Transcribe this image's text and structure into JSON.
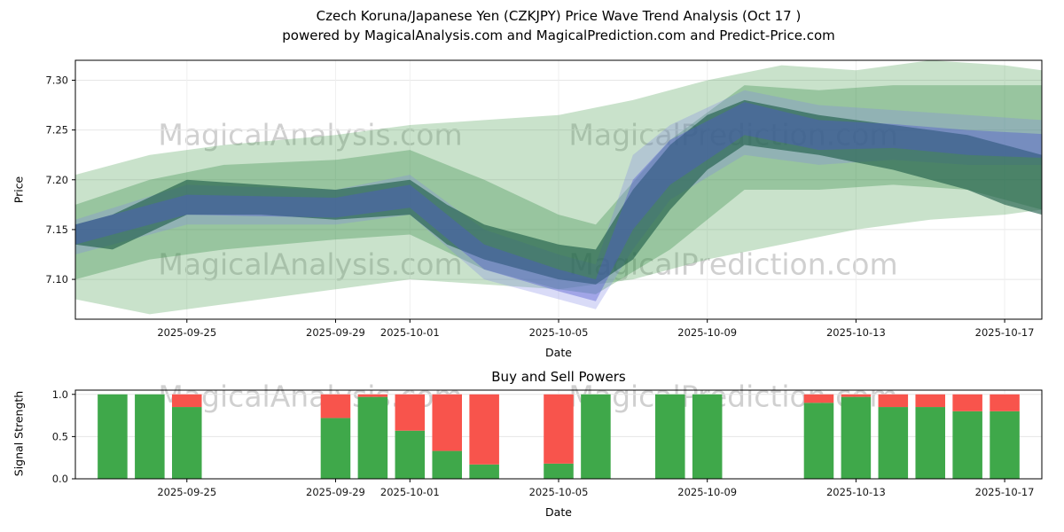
{
  "header": {
    "title_line1": "Czech Koruna/Japanese Yen (CZKJPY) Price Wave Trend Analysis (Oct 17 )",
    "title_line2": "powered by MagicalAnalysis.com and MagicalPrediction.com and Predict-Price.com"
  },
  "watermarks": {
    "analysis": "MagicalAnalysis.com",
    "prediction": "MagicalPrediction.com"
  },
  "chart_data": [
    {
      "type": "area",
      "name": "price-wave-trend",
      "xlabel": "Date",
      "ylabel": "Price",
      "x_start": "2025-09-22",
      "x_end": "2025-10-18",
      "ylim": [
        7.06,
        7.32
      ],
      "yticks": [
        7.1,
        7.15,
        7.2,
        7.25,
        7.3
      ],
      "ytick_labels": [
        "7.10",
        "7.15",
        "7.20",
        "7.25",
        "7.30"
      ],
      "xticks": [
        "2025-09-25",
        "2025-09-29",
        "2025-10-01",
        "2025-10-05",
        "2025-10-09",
        "2025-10-13",
        "2025-10-17"
      ],
      "grid": true,
      "bands": [
        {
          "name": "outer-green",
          "color": "#4d9e54",
          "opacity": 0.3,
          "points": [
            [
              "2025-09-22",
              7.08,
              7.205
            ],
            [
              "2025-09-24",
              7.065,
              7.225
            ],
            [
              "2025-09-26",
              7.075,
              7.235
            ],
            [
              "2025-09-29",
              7.09,
              7.245
            ],
            [
              "2025-10-01",
              7.1,
              7.255
            ],
            [
              "2025-10-03",
              7.095,
              7.26
            ],
            [
              "2025-10-05",
              7.09,
              7.265
            ],
            [
              "2025-10-07",
              7.1,
              7.28
            ],
            [
              "2025-10-09",
              7.12,
              7.3
            ],
            [
              "2025-10-11",
              7.135,
              7.315
            ],
            [
              "2025-10-13",
              7.15,
              7.31
            ],
            [
              "2025-10-15",
              7.16,
              7.32
            ],
            [
              "2025-10-17",
              7.165,
              7.315
            ],
            [
              "2025-10-18",
              7.17,
              7.31
            ]
          ]
        },
        {
          "name": "mid-green",
          "color": "#3c8f4c",
          "opacity": 0.35,
          "points": [
            [
              "2025-09-22",
              7.1,
              7.175
            ],
            [
              "2025-09-24",
              7.12,
              7.2
            ],
            [
              "2025-09-26",
              7.13,
              7.215
            ],
            [
              "2025-09-29",
              7.14,
              7.22
            ],
            [
              "2025-10-01",
              7.145,
              7.23
            ],
            [
              "2025-10-03",
              7.11,
              7.2
            ],
            [
              "2025-10-05",
              7.09,
              7.165
            ],
            [
              "2025-10-06",
              7.085,
              7.155
            ],
            [
              "2025-10-08",
              7.13,
              7.24
            ],
            [
              "2025-10-10",
              7.19,
              7.295
            ],
            [
              "2025-10-12",
              7.19,
              7.29
            ],
            [
              "2025-10-14",
              7.195,
              7.295
            ],
            [
              "2025-10-16",
              7.19,
              7.295
            ],
            [
              "2025-10-18",
              7.17,
              7.295
            ]
          ]
        },
        {
          "name": "blue-wide",
          "color": "#8187e6",
          "opacity": 0.3,
          "points": [
            [
              "2025-09-22",
              7.125,
              7.16
            ],
            [
              "2025-09-25",
              7.155,
              7.195
            ],
            [
              "2025-09-29",
              7.155,
              7.19
            ],
            [
              "2025-10-01",
              7.165,
              7.205
            ],
            [
              "2025-10-03",
              7.1,
              7.15
            ],
            [
              "2025-10-05",
              7.08,
              7.125
            ],
            [
              "2025-10-06",
              7.07,
              7.115
            ],
            [
              "2025-10-07",
              7.13,
              7.225
            ],
            [
              "2025-10-08",
              7.18,
              7.255
            ],
            [
              "2025-10-10",
              7.225,
              7.29
            ],
            [
              "2025-10-12",
              7.215,
              7.275
            ],
            [
              "2025-10-14",
              7.22,
              7.27
            ],
            [
              "2025-10-16",
              7.215,
              7.265
            ],
            [
              "2025-10-18",
              7.215,
              7.26
            ]
          ]
        },
        {
          "name": "dark-core",
          "color": "#1c5a47",
          "opacity": 0.62,
          "points": [
            [
              "2025-09-22",
              7.135,
              7.155
            ],
            [
              "2025-09-23",
              7.13,
              7.165
            ],
            [
              "2025-09-25",
              7.165,
              7.2
            ],
            [
              "2025-09-27",
              7.165,
              7.195
            ],
            [
              "2025-09-29",
              7.16,
              7.19
            ],
            [
              "2025-10-01",
              7.165,
              7.2
            ],
            [
              "2025-10-02",
              7.135,
              7.175
            ],
            [
              "2025-10-03",
              7.12,
              7.155
            ],
            [
              "2025-10-05",
              7.1,
              7.135
            ],
            [
              "2025-10-06",
              7.095,
              7.13
            ],
            [
              "2025-10-07",
              7.12,
              7.19
            ],
            [
              "2025-10-08",
              7.17,
              7.235
            ],
            [
              "2025-10-09",
              7.21,
              7.265
            ],
            [
              "2025-10-10",
              7.235,
              7.28
            ],
            [
              "2025-10-12",
              7.225,
              7.265
            ],
            [
              "2025-10-14",
              7.21,
              7.255
            ],
            [
              "2025-10-16",
              7.19,
              7.245
            ],
            [
              "2025-10-17",
              7.175,
              7.235
            ],
            [
              "2025-10-18",
              7.165,
              7.225
            ]
          ]
        },
        {
          "name": "blue-core",
          "color": "#4d55cf",
          "opacity": 0.4,
          "points": [
            [
              "2025-09-22",
              7.135,
              7.155
            ],
            [
              "2025-09-25",
              7.165,
              7.185
            ],
            [
              "2025-09-29",
              7.162,
              7.182
            ],
            [
              "2025-10-01",
              7.172,
              7.195
            ],
            [
              "2025-10-03",
              7.11,
              7.135
            ],
            [
              "2025-10-05",
              7.088,
              7.11
            ],
            [
              "2025-10-06",
              7.078,
              7.1
            ],
            [
              "2025-10-07",
              7.15,
              7.2
            ],
            [
              "2025-10-08",
              7.195,
              7.24
            ],
            [
              "2025-10-10",
              7.245,
              7.278
            ],
            [
              "2025-10-12",
              7.23,
              7.26
            ],
            [
              "2025-10-14",
              7.232,
              7.256
            ],
            [
              "2025-10-16",
              7.225,
              7.25
            ],
            [
              "2025-10-18",
              7.222,
              7.246
            ]
          ]
        }
      ]
    },
    {
      "type": "bar",
      "name": "buy-sell-powers",
      "title": "Buy and Sell Powers",
      "xlabel": "Date",
      "ylabel": "Signal Strength",
      "x_start": "2025-09-22",
      "x_end": "2025-10-18",
      "ylim": [
        0,
        1.05
      ],
      "yticks": [
        0,
        0.5,
        1
      ],
      "ytick_labels": [
        "0.0",
        "0.5",
        "1.0"
      ],
      "xticks": [
        "2025-09-25",
        "2025-09-29",
        "2025-10-01",
        "2025-10-05",
        "2025-10-09",
        "2025-10-13",
        "2025-10-17"
      ],
      "grid": true,
      "colors": {
        "buy": "#3fa84a",
        "sell": "#f8544c"
      },
      "bar_width_days": 0.8,
      "bars": [
        {
          "date": "2025-09-23",
          "buy": 1.0,
          "sell": 0.0
        },
        {
          "date": "2025-09-24",
          "buy": 1.0,
          "sell": 0.0
        },
        {
          "date": "2025-09-25",
          "buy": 0.85,
          "sell": 0.15
        },
        {
          "date": "2025-09-29",
          "buy": 0.72,
          "sell": 0.28
        },
        {
          "date": "2025-09-30",
          "buy": 0.97,
          "sell": 0.03
        },
        {
          "date": "2025-10-01",
          "buy": 0.57,
          "sell": 0.43
        },
        {
          "date": "2025-10-02",
          "buy": 0.33,
          "sell": 0.67
        },
        {
          "date": "2025-10-03",
          "buy": 0.17,
          "sell": 0.83
        },
        {
          "date": "2025-10-05",
          "buy": 0.18,
          "sell": 0.82
        },
        {
          "date": "2025-10-06",
          "buy": 1.0,
          "sell": 0.0
        },
        {
          "date": "2025-10-08",
          "buy": 1.0,
          "sell": 0.0
        },
        {
          "date": "2025-10-09",
          "buy": 1.0,
          "sell": 0.0
        },
        {
          "date": "2025-10-12",
          "buy": 0.9,
          "sell": 0.1
        },
        {
          "date": "2025-10-13",
          "buy": 0.97,
          "sell": 0.03
        },
        {
          "date": "2025-10-14",
          "buy": 0.85,
          "sell": 0.15
        },
        {
          "date": "2025-10-15",
          "buy": 0.85,
          "sell": 0.15
        },
        {
          "date": "2025-10-16",
          "buy": 0.8,
          "sell": 0.2
        },
        {
          "date": "2025-10-17",
          "buy": 0.8,
          "sell": 0.2
        }
      ]
    }
  ]
}
